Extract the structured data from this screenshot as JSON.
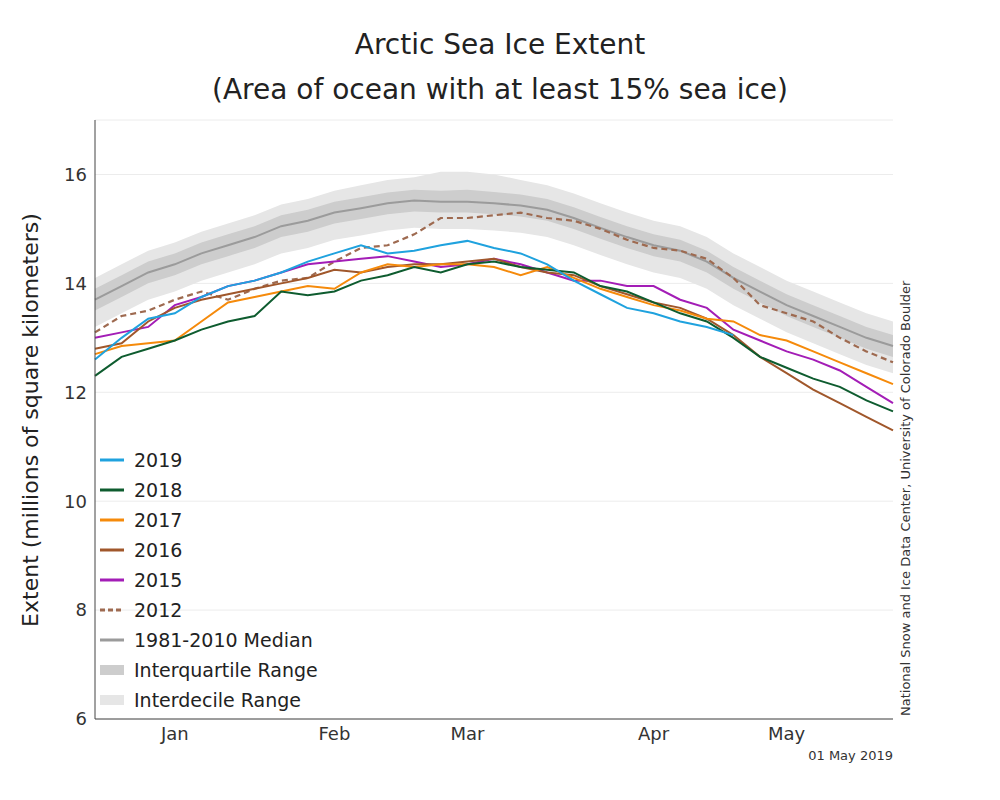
{
  "chart_data": {
    "type": "line",
    "title": "Arctic Sea Ice Extent",
    "subtitle": "(Area of ocean with at least 15% sea ice)",
    "y_label": "Extent (millions of square kilometers)",
    "annotations": [
      "National Snow and Ice Data Center, University of Colorado Boulder",
      "01 May 2019"
    ],
    "categories": [
      null,
      null,
      null,
      "Jan",
      null,
      null,
      null,
      null,
      null,
      "Feb",
      null,
      null,
      null,
      null,
      "Mar",
      null,
      null,
      null,
      null,
      null,
      null,
      "Apr",
      null,
      null,
      null,
      null,
      "May",
      null,
      null,
      null,
      null
    ],
    "ylim": [
      6,
      17
    ],
    "yticks": [
      6,
      8,
      10,
      12,
      14,
      16
    ],
    "grid": true,
    "legend": "lower left",
    "series": [
      {
        "name": "2019",
        "type": "line",
        "line_style": "solid",
        "color": "#1fa2de",
        "values": [
          12.6,
          13.0,
          13.35,
          13.45,
          13.75,
          13.95,
          14.05,
          14.2,
          14.4,
          14.55,
          14.7,
          14.55,
          14.6,
          14.7,
          14.78,
          14.65,
          14.55,
          14.35,
          14.05,
          13.8,
          13.55,
          13.45,
          13.3,
          13.2,
          13.05,
          null,
          null,
          null,
          null,
          null,
          null
        ]
      },
      {
        "name": "2018",
        "type": "line",
        "line_style": "solid",
        "color": "#0e5c2f",
        "values": [
          12.3,
          12.65,
          12.8,
          12.95,
          13.15,
          13.3,
          13.4,
          13.85,
          13.78,
          13.85,
          14.05,
          14.15,
          14.3,
          14.2,
          14.35,
          14.4,
          14.3,
          14.25,
          14.2,
          13.95,
          13.85,
          13.65,
          13.45,
          13.3,
          13.0,
          12.65,
          12.45,
          12.25,
          12.1,
          11.85,
          11.65
        ]
      },
      {
        "name": "2017",
        "type": "line",
        "line_style": "solid",
        "color": "#f58a0b",
        "values": [
          12.7,
          12.85,
          12.9,
          12.95,
          13.3,
          13.65,
          13.75,
          13.85,
          13.95,
          13.9,
          14.2,
          14.35,
          14.3,
          14.35,
          14.35,
          14.3,
          14.15,
          14.3,
          14.1,
          13.9,
          13.75,
          13.6,
          13.5,
          13.35,
          13.3,
          13.05,
          12.95,
          12.75,
          12.55,
          12.35,
          12.15
        ]
      },
      {
        "name": "2016",
        "type": "line",
        "line_style": "solid",
        "color": "#a0572b",
        "values": [
          12.8,
          12.9,
          13.3,
          13.55,
          13.7,
          13.8,
          13.9,
          14.0,
          14.1,
          14.25,
          14.2,
          14.3,
          14.35,
          14.35,
          14.4,
          14.45,
          14.3,
          14.2,
          14.15,
          13.95,
          13.8,
          13.65,
          13.55,
          13.35,
          13.05,
          12.65,
          12.35,
          12.05,
          11.8,
          11.55,
          11.3
        ]
      },
      {
        "name": "2015",
        "type": "line",
        "line_style": "solid",
        "color": "#a31db6",
        "values": [
          13.0,
          13.1,
          13.2,
          13.6,
          13.75,
          13.95,
          14.05,
          14.2,
          14.35,
          14.4,
          14.45,
          14.5,
          14.4,
          14.3,
          14.35,
          14.45,
          14.35,
          14.2,
          14.05,
          14.05,
          13.95,
          13.95,
          13.7,
          13.55,
          13.15,
          12.95,
          12.75,
          12.6,
          12.4,
          12.1,
          11.8
        ]
      },
      {
        "name": "2012",
        "type": "line",
        "line_style": "dashed",
        "color": "#9e6a50",
        "values": [
          13.1,
          13.4,
          13.5,
          13.7,
          13.85,
          13.7,
          13.9,
          14.05,
          14.1,
          14.4,
          14.65,
          14.7,
          14.9,
          15.2,
          15.2,
          15.25,
          15.3,
          15.2,
          15.15,
          15.0,
          14.8,
          14.65,
          14.6,
          14.45,
          14.1,
          13.6,
          13.45,
          13.3,
          13.0,
          12.75,
          12.55
        ]
      },
      {
        "name": "1981-2010 Median",
        "type": "line",
        "line_style": "solid",
        "color": "#9b9b9b",
        "values": [
          13.7,
          13.95,
          14.2,
          14.35,
          14.55,
          14.7,
          14.85,
          15.05,
          15.15,
          15.3,
          15.38,
          15.47,
          15.52,
          15.5,
          15.5,
          15.47,
          15.43,
          15.35,
          15.2,
          15.02,
          14.85,
          14.7,
          14.6,
          14.4,
          14.1,
          13.85,
          13.6,
          13.4,
          13.2,
          13.0,
          12.85
        ]
      },
      {
        "name": "Interquartile Range",
        "type": "range",
        "color": "#cdcdcd",
        "values": [
          [
            13.5,
            13.9
          ],
          [
            13.75,
            14.15
          ],
          [
            14.0,
            14.4
          ],
          [
            14.15,
            14.55
          ],
          [
            14.35,
            14.75
          ],
          [
            14.5,
            14.9
          ],
          [
            14.65,
            15.05
          ],
          [
            14.85,
            15.25
          ],
          [
            14.95,
            15.35
          ],
          [
            15.1,
            15.5
          ],
          [
            15.18,
            15.58
          ],
          [
            15.27,
            15.67
          ],
          [
            15.32,
            15.72
          ],
          [
            15.3,
            15.7
          ],
          [
            15.3,
            15.72
          ],
          [
            15.27,
            15.68
          ],
          [
            15.23,
            15.63
          ],
          [
            15.15,
            15.55
          ],
          [
            15.0,
            15.4
          ],
          [
            14.82,
            15.22
          ],
          [
            14.65,
            15.05
          ],
          [
            14.5,
            14.9
          ],
          [
            14.4,
            14.8
          ],
          [
            14.2,
            14.6
          ],
          [
            13.9,
            14.3
          ],
          [
            13.65,
            14.05
          ],
          [
            13.4,
            13.8
          ],
          [
            13.2,
            13.6
          ],
          [
            13.0,
            13.4
          ],
          [
            12.8,
            13.2
          ],
          [
            12.65,
            13.05
          ]
        ]
      },
      {
        "name": "Interdecile Range",
        "type": "range",
        "color": "#e6e6e6",
        "values": [
          [
            13.2,
            14.1
          ],
          [
            13.45,
            14.35
          ],
          [
            13.7,
            14.6
          ],
          [
            13.85,
            14.75
          ],
          [
            14.05,
            14.95
          ],
          [
            14.2,
            15.1
          ],
          [
            14.35,
            15.25
          ],
          [
            14.55,
            15.45
          ],
          [
            14.65,
            15.55
          ],
          [
            14.8,
            15.7
          ],
          [
            14.88,
            15.8
          ],
          [
            14.97,
            15.9
          ],
          [
            15.02,
            15.95
          ],
          [
            15.0,
            16.05
          ],
          [
            15.0,
            16.05
          ],
          [
            14.97,
            16.0
          ],
          [
            14.93,
            15.9
          ],
          [
            14.85,
            15.8
          ],
          [
            14.7,
            15.65
          ],
          [
            14.52,
            15.47
          ],
          [
            14.35,
            15.3
          ],
          [
            14.2,
            15.15
          ],
          [
            14.1,
            15.05
          ],
          [
            13.9,
            14.85
          ],
          [
            13.6,
            14.55
          ],
          [
            13.35,
            14.3
          ],
          [
            13.1,
            14.05
          ],
          [
            12.9,
            13.85
          ],
          [
            12.7,
            13.65
          ],
          [
            12.5,
            13.45
          ],
          [
            12.35,
            13.3
          ]
        ]
      }
    ]
  }
}
